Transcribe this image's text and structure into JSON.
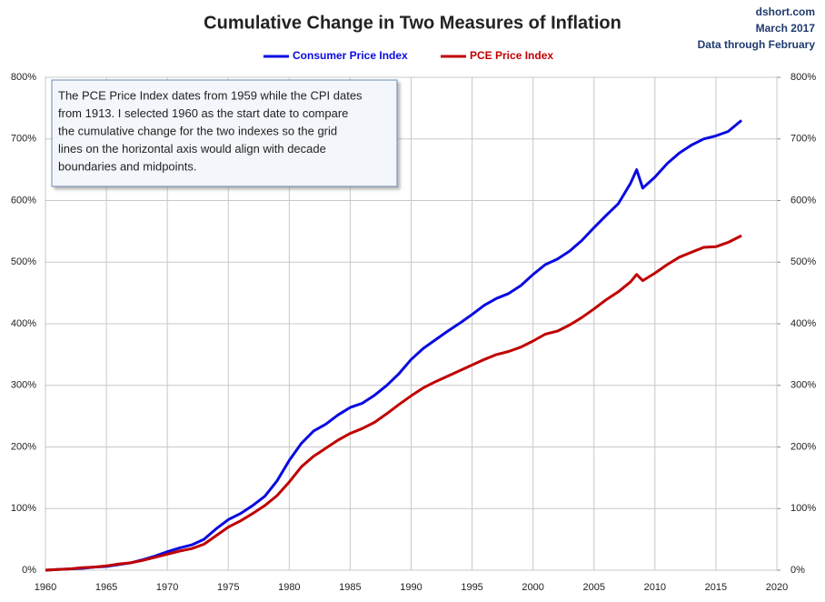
{
  "chart_data": {
    "type": "line",
    "title": "Cumulative Change in Two Measures of Inflation",
    "source": [
      "dshort.com",
      "March 2017",
      "Data through February"
    ],
    "annotation": [
      "The PCE Price Index dates from 1959 while the CPI dates",
      "from 1913. I selected 1960 as the start date to compare",
      "the cumulative change for the two indexes so the grid",
      "lines on the horizontal  axis would align with decade",
      "boundaries and midpoints."
    ],
    "x": [
      1960,
      1961,
      1962,
      1963,
      1964,
      1965,
      1966,
      1967,
      1968,
      1969,
      1970,
      1971,
      1972,
      1973,
      1974,
      1975,
      1976,
      1977,
      1978,
      1979,
      1980,
      1981,
      1982,
      1983,
      1984,
      1985,
      1986,
      1987,
      1988,
      1989,
      1990,
      1991,
      1992,
      1993,
      1994,
      1995,
      1996,
      1997,
      1998,
      1999,
      2000,
      2001,
      2002,
      2003,
      2004,
      2005,
      2006,
      2007,
      2008,
      2008.5,
      2009,
      2010,
      2011,
      2012,
      2013,
      2014,
      2015,
      2016,
      2017.1
    ],
    "series": [
      {
        "name": "Consumer Price Index",
        "color": "#0a0ae0",
        "values": [
          0,
          1,
          2,
          3,
          5,
          6,
          9,
          12,
          17,
          23,
          30,
          36,
          41,
          50,
          67,
          82,
          92,
          105,
          120,
          145,
          178,
          206,
          226,
          237,
          252,
          264,
          271,
          284,
          300,
          319,
          342,
          360,
          374,
          388,
          401,
          415,
          430,
          441,
          449,
          462,
          480,
          496,
          505,
          518,
          535,
          556,
          576,
          595,
          628,
          650,
          620,
          638,
          660,
          677,
          690,
          700,
          705,
          712,
          730
        ]
      },
      {
        "name": "PCE Price Index",
        "color": "#c00000",
        "values": [
          0,
          1,
          2,
          4,
          5,
          7,
          10,
          12,
          16,
          21,
          26,
          31,
          35,
          42,
          56,
          70,
          80,
          92,
          105,
          121,
          143,
          168,
          185,
          198,
          211,
          222,
          230,
          240,
          254,
          269,
          283,
          296,
          306,
          315,
          324,
          333,
          342,
          350,
          355,
          362,
          372,
          383,
          388,
          398,
          410,
          424,
          439,
          452,
          468,
          480,
          470,
          482,
          496,
          508,
          516,
          524,
          525,
          532,
          543
        ]
      }
    ],
    "xlim": [
      1960,
      2020
    ],
    "xticks": [
      1960,
      1965,
      1970,
      1975,
      1980,
      1985,
      1990,
      1995,
      2000,
      2005,
      2010,
      2015,
      2020
    ],
    "ylim": [
      0,
      800
    ],
    "yticks": [
      {
        "value": 0,
        "label": "0%"
      },
      {
        "value": 100,
        "label": "100%"
      },
      {
        "value": 200,
        "label": "200%"
      },
      {
        "value": 300,
        "label": "300%"
      },
      {
        "value": 400,
        "label": "400%"
      },
      {
        "value": 500,
        "label": "500%"
      },
      {
        "value": 600,
        "label": "600%"
      },
      {
        "value": 700,
        "label": "700%"
      },
      {
        "value": 800,
        "label": "800%"
      }
    ],
    "y2lim": [
      0,
      800
    ],
    "y2ticks": [
      {
        "value": 0,
        "label": "0%"
      },
      {
        "value": 100,
        "label": "100%"
      },
      {
        "value": 200,
        "label": "200%"
      },
      {
        "value": 300,
        "label": "300%"
      },
      {
        "value": 400,
        "label": "400%"
      },
      {
        "value": 500,
        "label": "500%"
      },
      {
        "value": 600,
        "label": "600%"
      },
      {
        "value": 700,
        "label": "700%"
      },
      {
        "value": 800,
        "label": "800%"
      }
    ],
    "grid": true
  }
}
